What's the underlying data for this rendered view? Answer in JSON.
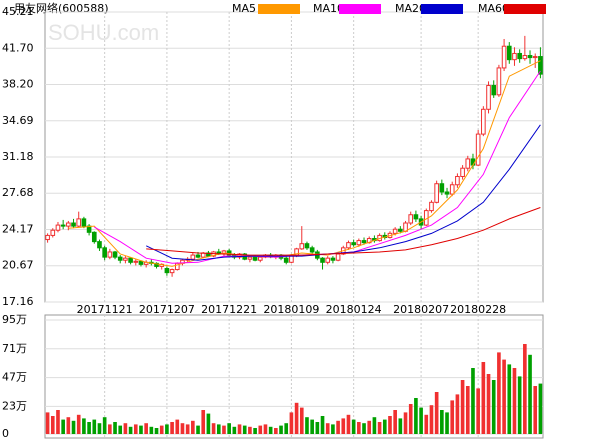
{
  "chart_data": {
    "type": "candlestick",
    "title": "用友网络(600588)",
    "watermark": "SOHU.com",
    "up_color": "#f03030",
    "down_color": "#00a000",
    "grid": true,
    "xlim": [
      -0.5,
      95.5
    ],
    "xticks": [
      {
        "value": 11,
        "label": "20171121"
      },
      {
        "value": 23,
        "label": "20171207"
      },
      {
        "value": 35,
        "label": "20171221"
      },
      {
        "value": 47,
        "label": "20180109"
      },
      {
        "value": 59,
        "label": "20180124"
      },
      {
        "value": 72,
        "label": "20180207"
      },
      {
        "value": 83,
        "label": "20180228"
      }
    ],
    "ylim": [
      17.16,
      45.21
    ],
    "yticks": [
      45.21,
      {
        "value": 41.7,
        "label": "41.70"
      },
      {
        "value": 38.2,
        "label": "38.20"
      },
      34.69,
      31.18,
      27.68,
      24.17,
      20.67,
      17.16
    ],
    "ohlc": [
      [
        23.2,
        23.8,
        22.9,
        23.6
      ],
      [
        23.6,
        24.3,
        23.4,
        24.1
      ],
      [
        24.1,
        24.9,
        23.9,
        24.6
      ],
      [
        24.6,
        25.1,
        24.2,
        24.5
      ],
      [
        24.5,
        25.0,
        24.1,
        24.8
      ],
      [
        24.8,
        25.2,
        24.3,
        24.5
      ],
      [
        24.5,
        25.9,
        24.4,
        25.2
      ],
      [
        25.2,
        25.4,
        24.3,
        24.5
      ],
      [
        24.5,
        24.7,
        23.6,
        23.9
      ],
      [
        23.9,
        24.0,
        22.8,
        23.0
      ],
      [
        23.0,
        23.2,
        22.1,
        22.4
      ],
      [
        22.4,
        22.6,
        21.2,
        21.5
      ],
      [
        21.5,
        22.3,
        21.3,
        22.0
      ],
      [
        22.0,
        22.1,
        21.3,
        21.5
      ],
      [
        21.5,
        21.7,
        20.9,
        21.2
      ],
      [
        21.2,
        21.6,
        20.9,
        21.4
      ],
      [
        21.4,
        21.5,
        20.8,
        21.0
      ],
      [
        21.0,
        21.3,
        20.7,
        21.1
      ],
      [
        21.1,
        21.2,
        20.6,
        20.8
      ],
      [
        20.8,
        21.2,
        20.5,
        21.0
      ],
      [
        21.0,
        21.3,
        20.7,
        20.9
      ],
      [
        20.9,
        21.0,
        20.4,
        20.6
      ],
      [
        20.6,
        20.9,
        20.3,
        20.8
      ],
      [
        20.4,
        20.6,
        19.7,
        20.0
      ],
      [
        20.0,
        20.4,
        19.6,
        20.3
      ],
      [
        20.3,
        21.0,
        20.2,
        20.9
      ],
      [
        20.9,
        21.3,
        20.7,
        21.2
      ],
      [
        21.2,
        21.5,
        21.0,
        21.3
      ],
      [
        21.3,
        21.9,
        21.2,
        21.7
      ],
      [
        21.7,
        22.0,
        21.4,
        21.5
      ],
      [
        21.5,
        22.0,
        21.4,
        21.9
      ],
      [
        21.9,
        22.1,
        21.5,
        21.6
      ],
      [
        21.6,
        22.1,
        21.5,
        22.0
      ],
      [
        22.0,
        22.3,
        21.7,
        21.8
      ],
      [
        21.8,
        22.2,
        21.6,
        22.1
      ],
      [
        22.1,
        22.3,
        21.6,
        21.7
      ],
      [
        21.7,
        21.9,
        21.3,
        21.5
      ],
      [
        21.5,
        21.9,
        21.3,
        21.8
      ],
      [
        21.8,
        21.9,
        21.2,
        21.3
      ],
      [
        21.3,
        21.6,
        21.0,
        21.5
      ],
      [
        21.5,
        21.7,
        21.1,
        21.2
      ],
      [
        21.2,
        21.6,
        21.0,
        21.5
      ],
      [
        21.5,
        21.8,
        21.4,
        21.7
      ],
      [
        21.7,
        21.9,
        21.4,
        21.5
      ],
      [
        21.5,
        21.8,
        21.3,
        21.7
      ],
      [
        21.7,
        21.8,
        21.2,
        21.4
      ],
      [
        21.4,
        21.6,
        20.8,
        21.0
      ],
      [
        21.0,
        21.8,
        20.9,
        21.6
      ],
      [
        21.6,
        22.4,
        21.5,
        22.3
      ],
      [
        22.3,
        24.5,
        22.2,
        22.8
      ],
      [
        22.8,
        23.0,
        22.2,
        22.4
      ],
      [
        22.4,
        22.6,
        21.8,
        22.0
      ],
      [
        22.0,
        22.2,
        21.2,
        21.4
      ],
      [
        21.4,
        21.5,
        20.3,
        21.0
      ],
      [
        21.0,
        21.6,
        20.8,
        21.4
      ],
      [
        21.4,
        21.6,
        20.9,
        21.2
      ],
      [
        21.2,
        22.0,
        21.1,
        21.8
      ],
      [
        21.8,
        22.6,
        21.7,
        22.4
      ],
      [
        22.4,
        23.1,
        22.2,
        22.9
      ],
      [
        22.9,
        23.2,
        22.5,
        22.7
      ],
      [
        22.7,
        23.3,
        22.5,
        23.1
      ],
      [
        23.1,
        23.4,
        22.7,
        22.9
      ],
      [
        22.9,
        23.5,
        22.8,
        23.3
      ],
      [
        23.3,
        23.6,
        22.9,
        23.1
      ],
      [
        23.1,
        23.8,
        23.0,
        23.6
      ],
      [
        23.6,
        23.9,
        23.2,
        23.4
      ],
      [
        23.4,
        24.0,
        23.3,
        23.8
      ],
      [
        23.8,
        24.4,
        23.6,
        24.2
      ],
      [
        24.2,
        24.5,
        23.8,
        24.0
      ],
      [
        24.0,
        25.0,
        23.9,
        24.8
      ],
      [
        24.8,
        25.9,
        24.6,
        25.6
      ],
      [
        25.6,
        26.0,
        24.9,
        25.2
      ],
      [
        25.2,
        25.5,
        24.2,
        24.6
      ],
      [
        24.6,
        26.2,
        24.5,
        26.0
      ],
      [
        26.0,
        27.0,
        25.8,
        26.8
      ],
      [
        26.8,
        28.9,
        26.7,
        28.6
      ],
      [
        28.6,
        29.0,
        27.5,
        27.8
      ],
      [
        27.8,
        28.2,
        27.2,
        27.6
      ],
      [
        27.6,
        28.8,
        27.4,
        28.5
      ],
      [
        28.5,
        29.6,
        28.2,
        29.3
      ],
      [
        29.3,
        30.4,
        29.0,
        30.1
      ],
      [
        30.1,
        31.3,
        29.8,
        31.0
      ],
      [
        31.0,
        31.5,
        30.0,
        30.4
      ],
      [
        30.4,
        33.8,
        30.3,
        33.4
      ],
      [
        33.4,
        36.1,
        33.2,
        35.8
      ],
      [
        35.8,
        38.5,
        35.4,
        38.1
      ],
      [
        38.1,
        38.6,
        36.9,
        37.2
      ],
      [
        37.2,
        40.1,
        37.0,
        39.8
      ],
      [
        39.8,
        42.6,
        39.5,
        41.9
      ],
      [
        41.9,
        42.3,
        40.2,
        40.6
      ],
      [
        40.6,
        41.8,
        40.0,
        41.2
      ],
      [
        41.2,
        41.6,
        40.3,
        40.7
      ],
      [
        40.7,
        42.9,
        40.5,
        41.0
      ],
      [
        41.0,
        41.5,
        40.2,
        40.8
      ],
      [
        40.8,
        41.2,
        39.8,
        40.9
      ],
      [
        40.9,
        41.8,
        38.8,
        39.2
      ]
    ],
    "lines": [
      {
        "name": "MA5",
        "color": "#ff9900",
        "x": [
          4,
          9,
          14,
          19,
          24,
          29,
          34,
          39,
          44,
          49,
          54,
          59,
          64,
          69,
          74,
          79,
          84,
          89,
          95
        ],
        "values": [
          24.3,
          24.5,
          21.8,
          21.0,
          20.6,
          21.3,
          21.9,
          21.6,
          21.5,
          21.9,
          21.7,
          22.4,
          23.3,
          24.0,
          25.5,
          28.0,
          32.0,
          39.0,
          40.5
        ]
      },
      {
        "name": "MA10",
        "color": "#ff00ff",
        "x": [
          9,
          14,
          19,
          24,
          29,
          34,
          39,
          44,
          49,
          54,
          59,
          64,
          69,
          74,
          79,
          84,
          89,
          95
        ],
        "values": [
          24.4,
          23.0,
          21.4,
          20.9,
          21.0,
          21.6,
          21.6,
          21.5,
          21.7,
          21.8,
          22.0,
          22.8,
          23.6,
          24.6,
          26.3,
          29.5,
          35.0,
          39.5
        ]
      },
      {
        "name": "MA20",
        "color": "#0000cc",
        "x": [
          19,
          24,
          29,
          34,
          39,
          44,
          49,
          54,
          59,
          64,
          69,
          74,
          79,
          84,
          89,
          95
        ],
        "values": [
          22.6,
          21.4,
          21.2,
          21.5,
          21.6,
          21.6,
          21.6,
          21.8,
          22.0,
          22.4,
          23.0,
          23.8,
          25.0,
          26.8,
          30.0,
          34.3
        ]
      },
      {
        "name": "MA60",
        "color": "#e00000",
        "x": [
          19,
          24,
          29,
          34,
          39,
          44,
          49,
          54,
          59,
          64,
          69,
          74,
          79,
          84,
          89,
          95
        ],
        "values": [
          22.3,
          22.1,
          21.9,
          21.8,
          21.7,
          21.7,
          21.7,
          21.8,
          21.9,
          22.0,
          22.2,
          22.7,
          23.3,
          24.1,
          25.2,
          26.3
        ]
      }
    ],
    "volume": {
      "ylim": [
        0,
        95
      ],
      "yticks": [
        {
          "value": 95,
          "label": "95万"
        },
        {
          "value": 71,
          "label": "71万"
        },
        {
          "value": 47,
          "label": "47万"
        },
        {
          "value": 23,
          "label": "23万"
        },
        0
      ],
      "values": [
        18,
        15,
        20,
        12,
        14,
        11,
        16,
        13,
        10,
        12,
        9,
        14,
        8,
        10,
        7,
        9,
        6,
        8,
        7,
        9,
        6,
        5,
        7,
        8,
        10,
        12,
        9,
        8,
        11,
        7,
        20,
        17,
        9,
        8,
        7,
        9,
        6,
        8,
        7,
        6,
        5,
        7,
        8,
        6,
        5,
        7,
        9,
        18,
        26,
        22,
        14,
        12,
        10,
        15,
        9,
        8,
        11,
        13,
        16,
        12,
        10,
        9,
        11,
        14,
        10,
        12,
        15,
        20,
        13,
        18,
        25,
        30,
        22,
        16,
        24,
        35,
        20,
        18,
        28,
        33,
        45,
        40,
        55,
        38,
        60,
        50,
        45,
        68,
        62,
        58,
        55,
        48,
        75,
        66,
        40,
        42
      ]
    }
  }
}
